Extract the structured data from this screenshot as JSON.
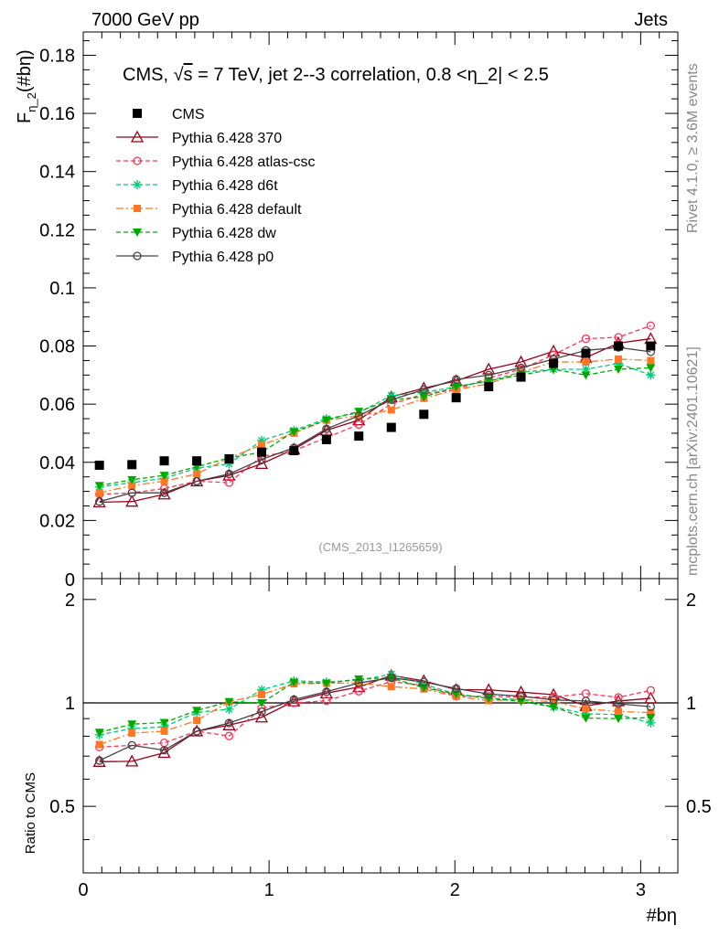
{
  "header": {
    "left": "7000 GeV pp",
    "right": "Jets",
    "side_top": "Rivet 4.1.0, ≥ 3.6M events",
    "side_bottom": "mcplots.cern.ch [arXiv:2401.10621]"
  },
  "chart_data": {
    "type": "scatter",
    "title_prefix": "CMS, ",
    "title_sqrt": "√",
    "title_s": "s",
    "title_suffix": " = 7 TeV, jet 2--3 correlation, 0.8 <η_2| < 2.5",
    "watermark": "(CMS_2013_I1265659)",
    "ylabel_main": "F",
    "ylabel_sub": "η_2",
    "ylabel_tail": "(#bη)",
    "ylabel_ratio": "Ratio to CMS",
    "xlabel": "#bη",
    "xlim": [
      0,
      3.2
    ],
    "ylim_main": [
      0,
      0.188
    ],
    "ylim_ratio": [
      0.32,
      2.3
    ],
    "x_ticks": [
      "0",
      "1",
      "2",
      "3"
    ],
    "y_ticks_main": [
      "0.02",
      "0.04",
      "0.06",
      "0.08",
      "0.1",
      "0.12",
      "0.14",
      "0.16",
      "0.18"
    ],
    "y_zero_label": "0",
    "y_ticks_ratio": [
      "0.5",
      "1",
      "2"
    ],
    "x": [
      0.087,
      0.262,
      0.436,
      0.611,
      0.785,
      0.96,
      1.134,
      1.309,
      1.483,
      1.658,
      1.833,
      2.007,
      2.182,
      2.356,
      2.531,
      2.705,
      2.88,
      3.054
    ],
    "data": {
      "name": "CMS",
      "values": [
        0.039,
        0.0392,
        0.0405,
        0.0405,
        0.0412,
        0.0435,
        0.044,
        0.0478,
        0.049,
        0.052,
        0.0565,
        0.0622,
        0.066,
        0.0693,
        0.074,
        0.0775,
        0.08,
        0.08
      ]
    },
    "series": [
      {
        "name": "Pythia 6.428 370",
        "color": "#99001a",
        "values": [
          0.0263,
          0.0265,
          0.029,
          0.0335,
          0.0355,
          0.0395,
          0.0445,
          0.051,
          0.0545,
          0.0625,
          0.0655,
          0.068,
          0.072,
          0.0745,
          0.0782,
          0.076,
          0.081,
          0.0825
        ]
      },
      {
        "name": "Pythia 6.428 atlas-csc",
        "color": "#ff3355",
        "values": [
          0.029,
          0.0295,
          0.031,
          0.0335,
          0.033,
          0.042,
          0.044,
          0.0485,
          0.053,
          0.06,
          0.0635,
          0.065,
          0.069,
          0.072,
          0.077,
          0.0825,
          0.083,
          0.087
        ]
      },
      {
        "name": "Pythia 6.428 d6t",
        "color": "#00cc77",
        "values": [
          0.0315,
          0.033,
          0.0345,
          0.038,
          0.0395,
          0.0475,
          0.051,
          0.055,
          0.057,
          0.063,
          0.064,
          0.066,
          0.068,
          0.071,
          0.072,
          0.072,
          0.074,
          0.07
        ]
      },
      {
        "name": "Pythia 6.428 default",
        "color": "#ff7722",
        "values": [
          0.0295,
          0.032,
          0.0335,
          0.036,
          0.0415,
          0.046,
          0.05,
          0.0545,
          0.056,
          0.058,
          0.062,
          0.065,
          0.067,
          0.071,
          0.0745,
          0.0745,
          0.0755,
          0.075
        ]
      },
      {
        "name": "Pythia 6.428 dw",
        "color": "#00aa00",
        "values": [
          0.032,
          0.034,
          0.0355,
          0.0385,
          0.0415,
          0.0435,
          0.0505,
          0.0545,
          0.0575,
          0.0615,
          0.0625,
          0.066,
          0.068,
          0.07,
          0.072,
          0.07,
          0.072,
          0.0725
        ]
      },
      {
        "name": "Pythia 6.428 p0",
        "color": "#444444",
        "values": [
          0.0265,
          0.0295,
          0.0295,
          0.0335,
          0.036,
          0.041,
          0.045,
          0.0515,
          0.056,
          0.0615,
          0.065,
          0.0685,
          0.07,
          0.0725,
          0.0755,
          0.0785,
          0.0795,
          0.078
        ]
      }
    ]
  }
}
